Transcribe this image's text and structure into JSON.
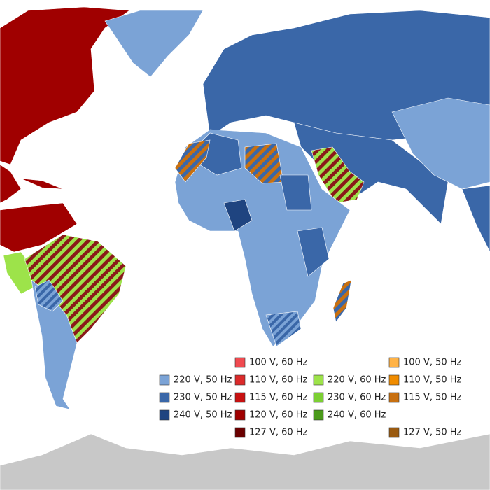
{
  "legend": {
    "items": [
      {
        "label": "220 V, 50 Hz",
        "color": "#7ba3d6"
      },
      {
        "label": "230 V, 50 Hz",
        "color": "#3a67a8"
      },
      {
        "label": "240 V, 50 Hz",
        "color": "#1f4480"
      },
      {
        "label": "100 V, 60 Hz",
        "color": "#f04a50"
      },
      {
        "label": "110 V, 60 Hz",
        "color": "#dc2a2a"
      },
      {
        "label": "115 V, 60 Hz",
        "color": "#c81010"
      },
      {
        "label": "120 V, 60 Hz",
        "color": "#a00000"
      },
      {
        "label": "127 V, 60 Hz",
        "color": "#6a0000"
      },
      {
        "label": "220 V, 60 Hz",
        "color": "#9de34a"
      },
      {
        "label": "230 V, 60 Hz",
        "color": "#7ccf33"
      },
      {
        "label": "240 V, 60 Hz",
        "color": "#4a9a1a"
      },
      {
        "label": "100 V, 50 Hz",
        "color": "#ffb347"
      },
      {
        "label": "110 V, 50 Hz",
        "color": "#f08c00"
      },
      {
        "label": "115 V, 50 Hz",
        "color": "#c87010"
      },
      {
        "label": "127 V, 50 Hz",
        "color": "#9a5a10"
      }
    ]
  }
}
